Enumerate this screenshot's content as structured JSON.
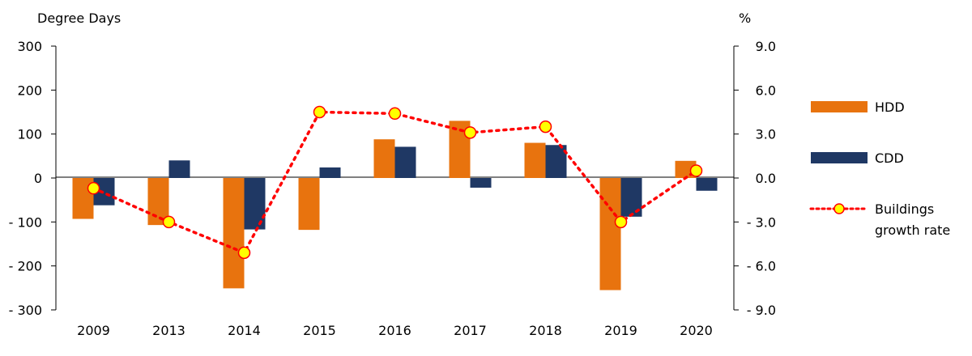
{
  "chart_data": {
    "type": "bar+line",
    "categories": [
      "2009",
      "2013",
      "2014",
      "2015",
      "2016",
      "2017",
      "2018",
      "2019",
      "2020"
    ],
    "y_left": {
      "label": "Degree Days",
      "range": [
        -300,
        300
      ],
      "ticks": [
        300,
        200,
        100,
        0,
        -100,
        -200,
        -300
      ],
      "tick_labels": [
        "300",
        "200",
        "100",
        "0",
        "- 100",
        "- 200",
        "- 300"
      ]
    },
    "y_right": {
      "label": "%",
      "range": [
        -9,
        9
      ],
      "ticks": [
        9,
        6,
        3,
        0,
        -3,
        -6,
        -9
      ],
      "tick_labels": [
        "9.0",
        "6.0",
        "3.0",
        "0.0",
        "- 3.0",
        "- 6.0",
        "- 9.0"
      ]
    },
    "series": [
      {
        "name": "HDD",
        "kind": "bar",
        "axis": "left",
        "color": "#E8730E",
        "values": [
          -93,
          -107,
          -251,
          -118,
          88,
          130,
          80,
          -255,
          39
        ]
      },
      {
        "name": "CDD",
        "kind": "bar",
        "axis": "left",
        "color": "#1F3864",
        "values": [
          -62,
          40,
          -117,
          24,
          71,
          -22,
          75,
          -88,
          -29
        ]
      },
      {
        "name": "Buildings growth rate",
        "kind": "line",
        "axis": "right",
        "color": "#FF0000",
        "marker_fill": "#FFFF00",
        "values": [
          -0.7,
          -3.0,
          -5.1,
          4.5,
          4.4,
          3.1,
          3.5,
          -3.0,
          0.5
        ]
      }
    ],
    "legend": {
      "position": "right",
      "items": [
        "HDD",
        "CDD",
        "Buildings growth rate"
      ]
    }
  }
}
